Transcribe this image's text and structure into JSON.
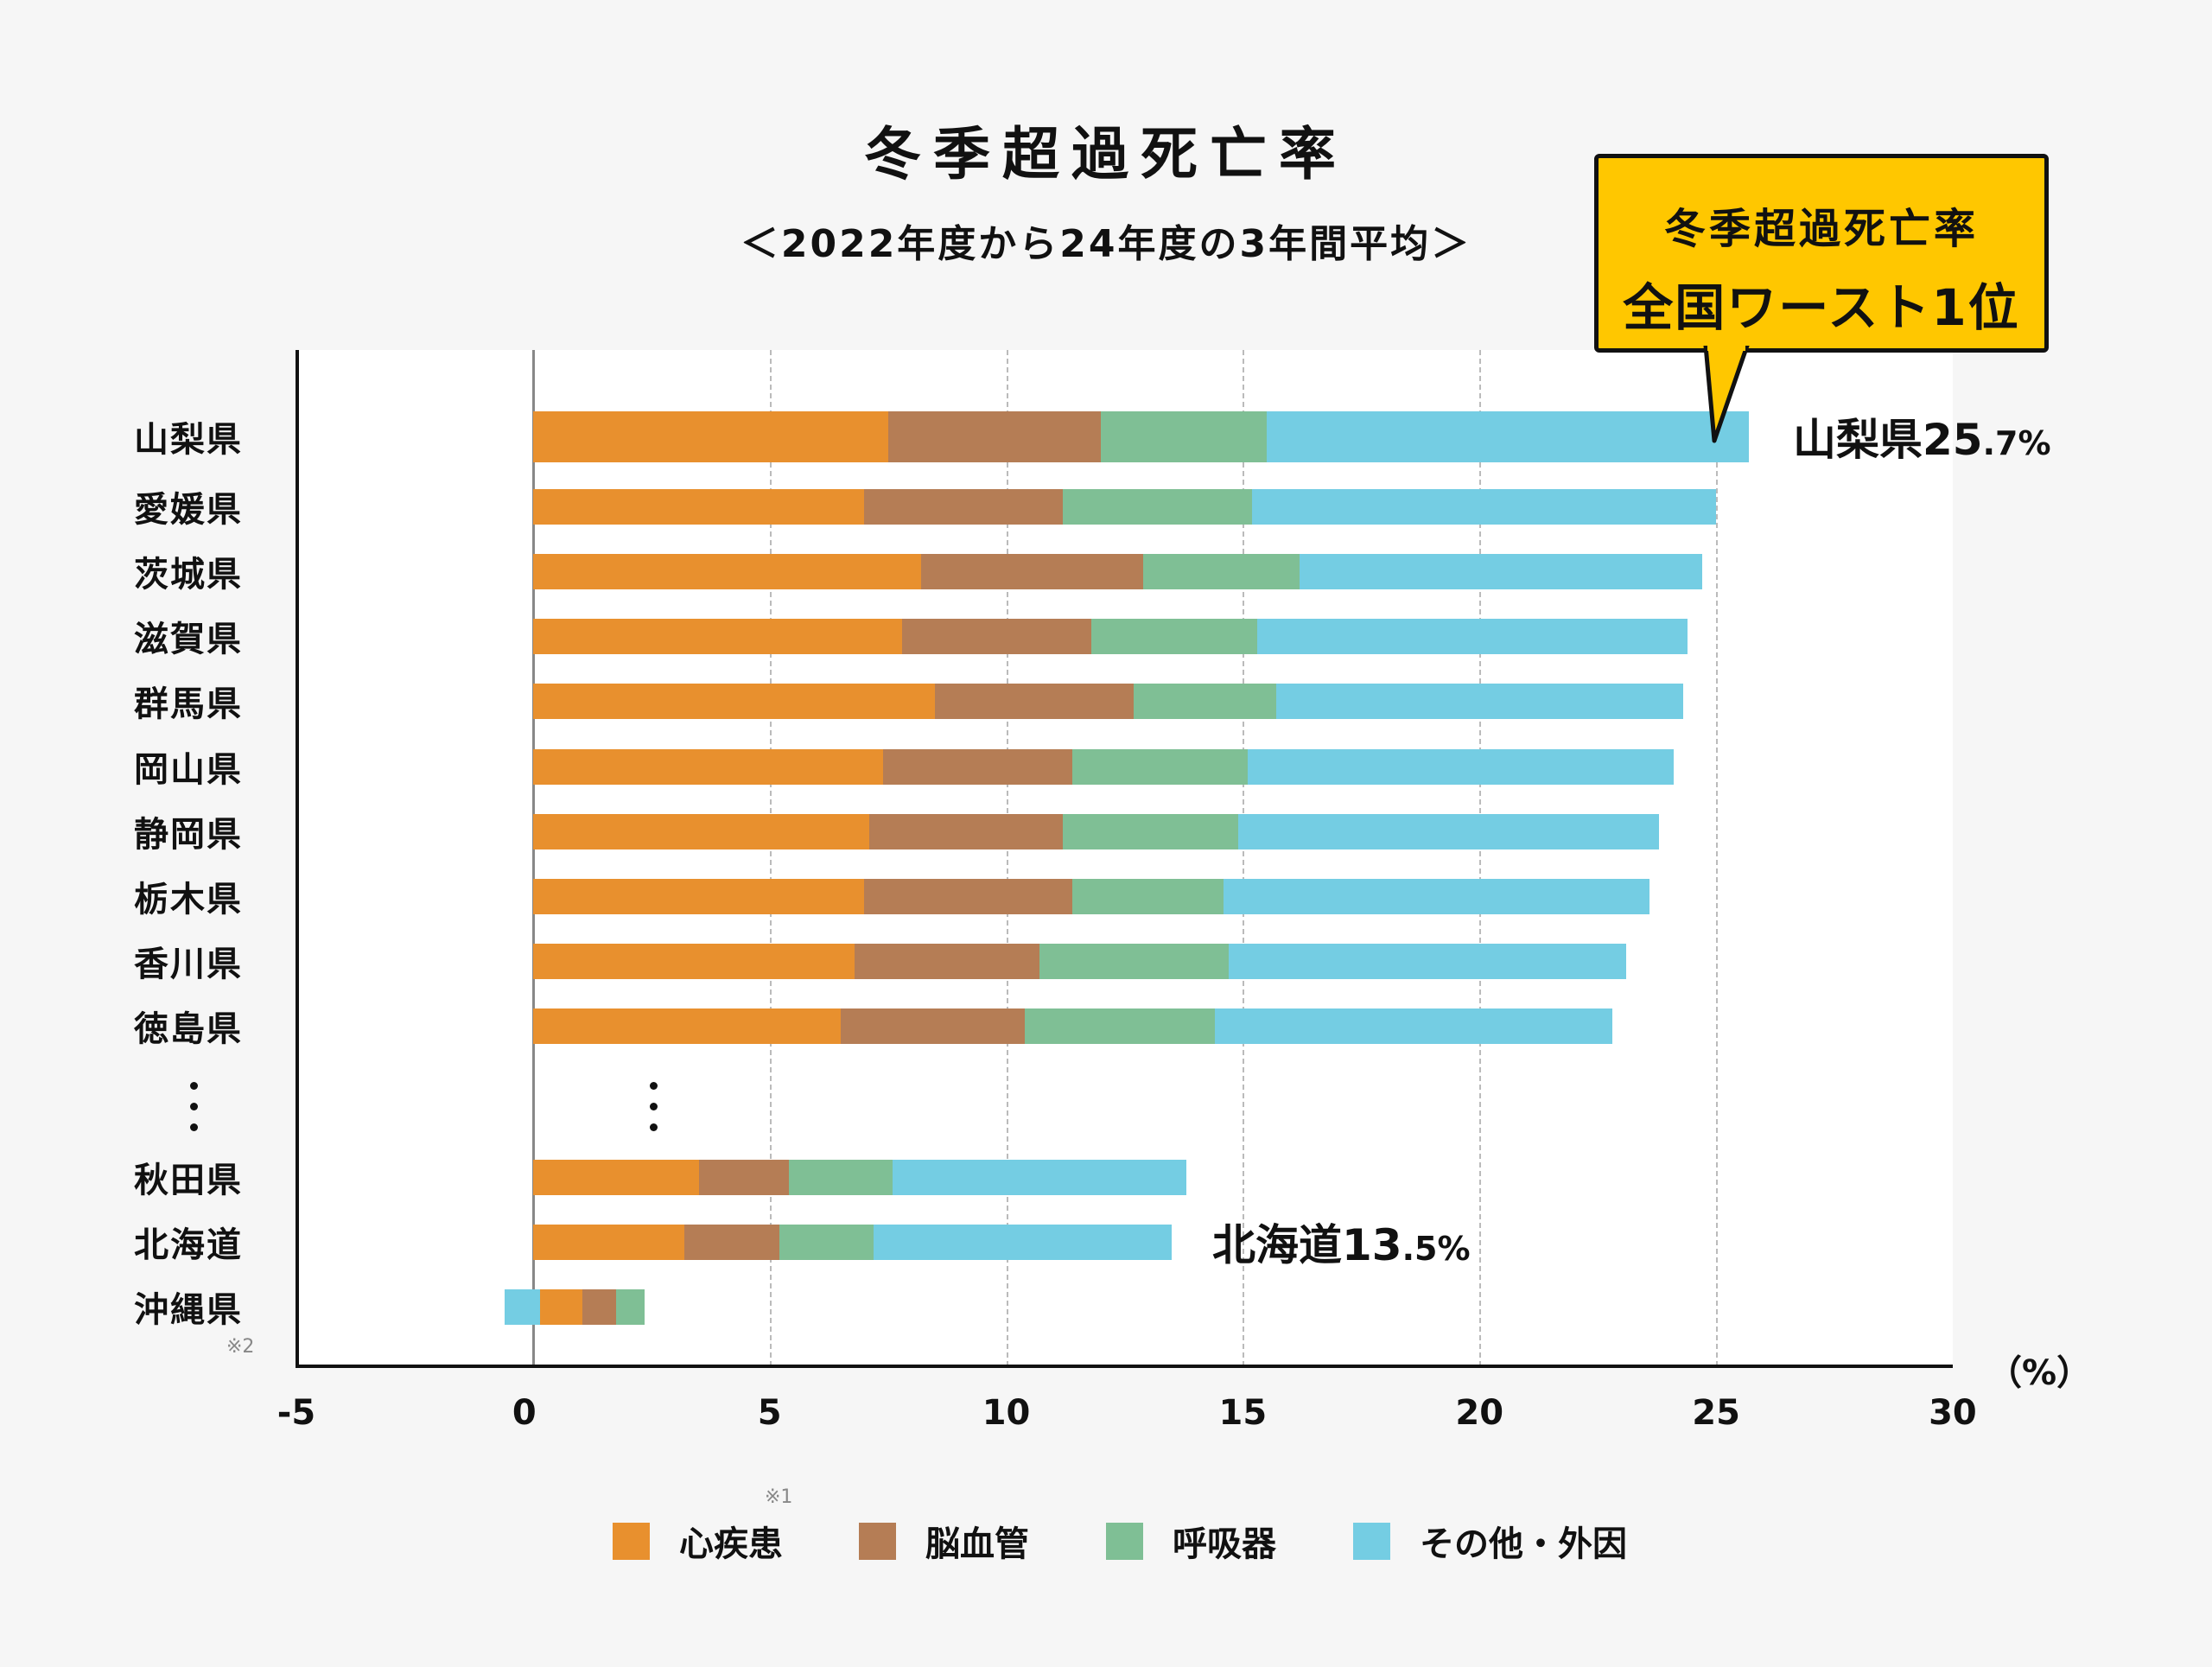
{
  "title": "冬季超過死亡率",
  "subtitle": "＜2022年度から24年度の3年間平均＞",
  "callout": {
    "line1": "冬季超過死亡率",
    "line2": "全国ワースト1位"
  },
  "annotations": {
    "top": {
      "name": "山梨県",
      "int": "25",
      "dec": ".7%"
    },
    "hokkaido": {
      "name": "北海道",
      "int": "13",
      "dec": ".5%"
    }
  },
  "notes": {
    "legend_note": "※1",
    "okinawa_note": "※2"
  },
  "unit_label": "（%）",
  "colors": {
    "heart": "#e8902e",
    "cerebro": "#b57d55",
    "resp": "#7fbf95",
    "other": "#74cde3",
    "callout": "#ffc700"
  },
  "chart_data": {
    "type": "bar",
    "orientation": "horizontal",
    "stacked": true,
    "title": "冬季超過死亡率",
    "subtitle": "＜2022年度から24年度の3年間平均＞",
    "xlabel": "（%）",
    "xlim": [
      -5,
      30
    ],
    "xticks": [
      "-5",
      "0",
      "5",
      "10",
      "15",
      "20",
      "25",
      "30"
    ],
    "grid": "vertical dashed",
    "legend_position": "bottom",
    "categories": [
      "山梨県",
      "愛媛県",
      "茨城県",
      "滋賀県",
      "群馬県",
      "岡山県",
      "静岡県",
      "栃木県",
      "香川県",
      "徳島県",
      "…",
      "秋田県",
      "北海道",
      "沖縄県"
    ],
    "series": [
      {
        "name": "心疾患",
        "values": [
          7.5,
          7.0,
          8.2,
          7.8,
          8.5,
          7.4,
          7.1,
          7.0,
          6.8,
          6.5,
          null,
          3.5,
          3.2,
          0.9
        ]
      },
      {
        "name": "脳血管",
        "values": [
          4.5,
          4.2,
          4.7,
          4.0,
          4.2,
          4.0,
          4.1,
          4.4,
          3.9,
          3.9,
          null,
          1.9,
          2.0,
          0.7
        ]
      },
      {
        "name": "呼吸器",
        "values": [
          3.5,
          4.0,
          3.3,
          3.5,
          3.0,
          3.7,
          3.7,
          3.2,
          4.0,
          4.0,
          null,
          2.2,
          2.0,
          0.6
        ]
      },
      {
        "name": "その他・外因",
        "values": [
          10.2,
          9.8,
          8.5,
          9.1,
          8.6,
          9.0,
          8.9,
          9.0,
          8.4,
          8.4,
          null,
          6.2,
          6.3,
          -0.6
        ]
      }
    ],
    "totals_labeled": {
      "山梨県": 25.7,
      "北海道": 13.5
    }
  }
}
